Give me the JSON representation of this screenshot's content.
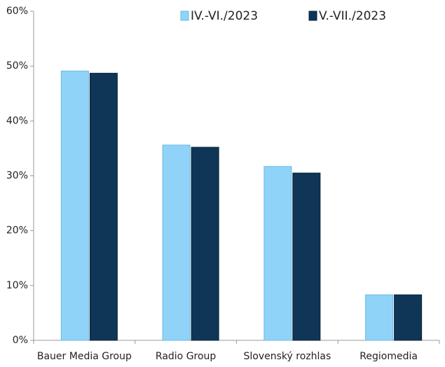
{
  "chart_data": {
    "type": "bar",
    "categories": [
      "Bauer Media Group",
      "Radio Group",
      "Slovenský rozhlas",
      "Regiomedia"
    ],
    "series": [
      {
        "name": "IV.-VI./2023",
        "color": "#8fd4f8",
        "values": [
          49.1,
          35.6,
          31.7,
          8.3
        ]
      },
      {
        "name": "V.-VII./2023",
        "color": "#0f3557",
        "values": [
          48.7,
          35.2,
          30.5,
          8.3
        ]
      }
    ],
    "ylim": [
      0,
      60
    ],
    "yticks": [
      {
        "value": 0,
        "label": "0%"
      },
      {
        "value": 10,
        "label": "10%"
      },
      {
        "value": 20,
        "label": "20%"
      },
      {
        "value": 30,
        "label": "30%"
      },
      {
        "value": 40,
        "label": "40%"
      },
      {
        "value": 50,
        "label": "50%"
      },
      {
        "value": 60,
        "label": "60%"
      }
    ],
    "legend": "top"
  }
}
